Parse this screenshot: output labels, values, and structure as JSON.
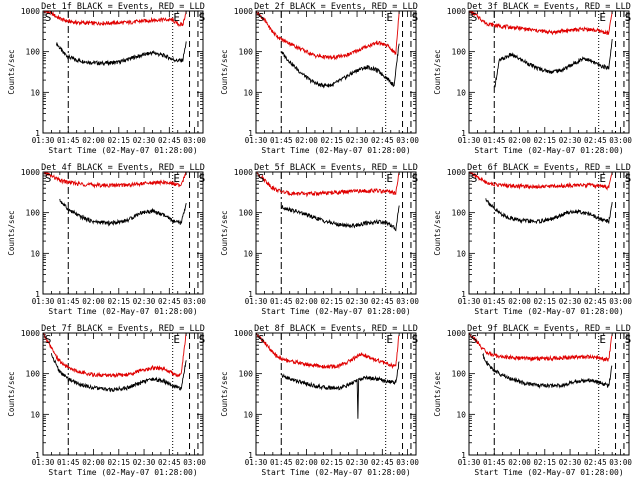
{
  "figure": {
    "x_label": "Start Time (02-May-07 01:28:00)",
    "y_label": "Counts/sec",
    "x_ticks": [
      "01:30",
      "01:45",
      "02:00",
      "02:15",
      "02:30",
      "02:45",
      "03:00"
    ],
    "y_ticks": [
      "1",
      "10",
      "100",
      "1000"
    ],
    "markers": [
      "S",
      "E",
      "S"
    ],
    "colors": {
      "events": "#000000",
      "lld": "#e00000",
      "axes": "#000000"
    }
  },
  "chart_data": [
    {
      "type": "line",
      "title": "Det 1f BLACK = Events, RED = LLD",
      "x_unit": "minutes after 01:30",
      "y_scale": "log",
      "xlim": [
        0,
        95
      ],
      "ylim": [
        1,
        1000
      ],
      "guide_lines": {
        "dashdot": 15,
        "dotted": 77,
        "dashed": [
          87,
          92
        ]
      },
      "series": [
        {
          "name": "Events",
          "color": "#000000",
          "x": [
            8,
            12,
            15,
            20,
            28,
            35,
            45,
            55,
            65,
            72,
            77,
            80,
            83,
            85
          ],
          "y": [
            160,
            95,
            75,
            62,
            55,
            52,
            55,
            75,
            95,
            80,
            65,
            60,
            62,
            170
          ]
        },
        {
          "name": "LLD",
          "color": "#e00000",
          "x": [
            0,
            5,
            8,
            12,
            15,
            20,
            30,
            40,
            50,
            60,
            70,
            77,
            80,
            83,
            85
          ],
          "y": [
            1000,
            880,
            720,
            600,
            560,
            520,
            500,
            510,
            520,
            570,
            620,
            600,
            480,
            450,
            1000
          ]
        }
      ]
    },
    {
      "type": "line",
      "title": "Det 2f BLACK = Events, RED = LLD",
      "x_unit": "minutes after 01:30",
      "y_scale": "log",
      "xlim": [
        0,
        95
      ],
      "ylim": [
        1,
        1000
      ],
      "guide_lines": {
        "dashdot": 15,
        "dotted": 77,
        "dashed": [
          87,
          92
        ]
      },
      "series": [
        {
          "name": "Events",
          "color": "#000000",
          "x": [
            15,
            18,
            25,
            32,
            38,
            45,
            52,
            60,
            66,
            72,
            78,
            82,
            85
          ],
          "y": [
            100,
            70,
            35,
            20,
            15,
            15,
            22,
            35,
            42,
            35,
            22,
            15,
            170
          ]
        },
        {
          "name": "LLD",
          "color": "#e00000",
          "x": [
            0,
            5,
            10,
            15,
            20,
            28,
            35,
            45,
            55,
            65,
            72,
            78,
            83,
            85
          ],
          "y": [
            1000,
            600,
            300,
            200,
            160,
            110,
            80,
            70,
            85,
            130,
            170,
            140,
            90,
            1000
          ]
        }
      ]
    },
    {
      "type": "line",
      "title": "Det 3f BLACK = Events, RED = LLD",
      "x_unit": "minutes after 01:30",
      "y_scale": "log",
      "xlim": [
        0,
        95
      ],
      "ylim": [
        1,
        1000
      ],
      "guide_lines": {
        "dashdot": 15,
        "dotted": 77,
        "dashed": [
          87,
          92
        ]
      },
      "series": [
        {
          "name": "Events",
          "color": "#000000",
          "x": [
            15,
            18,
            25,
            32,
            40,
            48,
            55,
            62,
            68,
            72,
            78,
            83,
            85
          ],
          "y": [
            12,
            60,
            85,
            60,
            40,
            32,
            35,
            50,
            70,
            60,
            45,
            40,
            200
          ]
        },
        {
          "name": "LLD",
          "color": "#e00000",
          "x": [
            0,
            5,
            10,
            15,
            20,
            30,
            40,
            50,
            60,
            70,
            78,
            83,
            85
          ],
          "y": [
            1000,
            750,
            500,
            450,
            420,
            380,
            330,
            300,
            340,
            360,
            320,
            280,
            1000
          ]
        }
      ]
    },
    {
      "type": "line",
      "title": "Det 4f BLACK = Events, RED = LLD",
      "x_unit": "minutes after 01:30",
      "y_scale": "log",
      "xlim": [
        0,
        95
      ],
      "ylim": [
        1,
        1000
      ],
      "guide_lines": {
        "dashdot": 15,
        "dotted": 77,
        "dashed": [
          87,
          92
        ]
      },
      "series": [
        {
          "name": "Events",
          "color": "#000000",
          "x": [
            10,
            15,
            22,
            30,
            40,
            50,
            58,
            65,
            72,
            78,
            82,
            85
          ],
          "y": [
            200,
            120,
            80,
            60,
            55,
            65,
            100,
            110,
            85,
            60,
            55,
            170
          ]
        },
        {
          "name": "LLD",
          "color": "#e00000",
          "x": [
            0,
            5,
            10,
            15,
            20,
            30,
            40,
            50,
            60,
            70,
            78,
            82,
            85
          ],
          "y": [
            1000,
            800,
            620,
            560,
            520,
            480,
            470,
            480,
            520,
            560,
            520,
            450,
            1000
          ]
        }
      ]
    },
    {
      "type": "line",
      "title": "Det 5f BLACK = Events, RED = LLD",
      "x_unit": "minutes after 01:30",
      "y_scale": "log",
      "xlim": [
        0,
        95
      ],
      "ylim": [
        1,
        1000
      ],
      "guide_lines": {
        "dashdot": 15,
        "dotted": 77,
        "dashed": [
          87,
          92
        ]
      },
      "series": [
        {
          "name": "Events",
          "color": "#000000",
          "x": [
            15,
            20,
            28,
            35,
            42,
            50,
            58,
            65,
            72,
            78,
            83,
            85
          ],
          "y": [
            140,
            120,
            95,
            75,
            60,
            50,
            48,
            55,
            60,
            55,
            40,
            150
          ]
        },
        {
          "name": "LLD",
          "color": "#e00000",
          "x": [
            0,
            5,
            10,
            15,
            20,
            30,
            40,
            50,
            60,
            70,
            78,
            83,
            85
          ],
          "y": [
            1000,
            650,
            400,
            330,
            300,
            290,
            300,
            320,
            340,
            350,
            330,
            300,
            1000
          ]
        }
      ]
    },
    {
      "type": "line",
      "title": "Det 6f BLACK = Events, RED = LLD",
      "x_unit": "minutes after 01:30",
      "y_scale": "log",
      "xlim": [
        0,
        95
      ],
      "ylim": [
        1,
        1000
      ],
      "guide_lines": {
        "dashdot": 15,
        "dotted": 77,
        "dashed": [
          87,
          92
        ]
      },
      "series": [
        {
          "name": "Events",
          "color": "#000000",
          "x": [
            10,
            15,
            22,
            30,
            40,
            50,
            58,
            65,
            72,
            78,
            83,
            85
          ],
          "y": [
            220,
            120,
            80,
            65,
            60,
            70,
            100,
            110,
            90,
            70,
            60,
            180
          ]
        },
        {
          "name": "LLD",
          "color": "#e00000",
          "x": [
            0,
            5,
            10,
            15,
            20,
            30,
            40,
            50,
            60,
            70,
            78,
            83,
            85
          ],
          "y": [
            1000,
            750,
            560,
            500,
            470,
            450,
            440,
            450,
            470,
            480,
            450,
            420,
            1000
          ]
        }
      ]
    },
    {
      "type": "line",
      "title": "Det 7f BLACK = Events, RED = LLD",
      "x_unit": "minutes after 01:30",
      "y_scale": "log",
      "xlim": [
        0,
        95
      ],
      "ylim": [
        1,
        1000
      ],
      "guide_lines": {
        "dashdot": 15,
        "dotted": 77,
        "dashed": [
          87,
          92
        ]
      },
      "series": [
        {
          "name": "Events",
          "color": "#000000",
          "x": [
            5,
            10,
            15,
            22,
            30,
            40,
            50,
            58,
            65,
            72,
            78,
            82,
            85
          ],
          "y": [
            300,
            110,
            75,
            55,
            45,
            40,
            45,
            60,
            75,
            65,
            48,
            42,
            220
          ]
        },
        {
          "name": "LLD",
          "color": "#e00000",
          "x": [
            0,
            4,
            8,
            12,
            15,
            22,
            30,
            40,
            50,
            58,
            65,
            72,
            78,
            82,
            85
          ],
          "y": [
            1000,
            500,
            250,
            170,
            140,
            110,
            95,
            90,
            95,
            120,
            140,
            130,
            100,
            90,
            1000
          ]
        }
      ]
    },
    {
      "type": "line",
      "title": "Det 8f BLACK = Events, RED = LLD",
      "x_unit": "minutes after 01:30",
      "y_scale": "log",
      "xlim": [
        0,
        95
      ],
      "ylim": [
        1,
        1000
      ],
      "guide_lines": {
        "dashdot": 15,
        "dotted": 77,
        "dashed": [
          87,
          92
        ]
      },
      "series": [
        {
          "name": "Events",
          "color": "#000000",
          "x": [
            15,
            20,
            28,
            35,
            42,
            50,
            56,
            60,
            60.5,
            61,
            65,
            72,
            78,
            83,
            85
          ],
          "y": [
            90,
            75,
            60,
            50,
            45,
            45,
            55,
            70,
            8,
            70,
            80,
            75,
            65,
            60,
            200
          ]
        },
        {
          "name": "LLD",
          "color": "#e00000",
          "x": [
            0,
            5,
            10,
            15,
            22,
            30,
            40,
            48,
            55,
            62,
            68,
            74,
            78,
            83,
            85
          ],
          "y": [
            1000,
            600,
            320,
            230,
            200,
            170,
            150,
            150,
            200,
            300,
            250,
            200,
            170,
            150,
            1000
          ]
        }
      ]
    },
    {
      "type": "line",
      "title": "Det 9f BLACK = Events, RED = LLD",
      "x_unit": "minutes after 01:30",
      "y_scale": "log",
      "xlim": [
        0,
        95
      ],
      "ylim": [
        1,
        1000
      ],
      "guide_lines": {
        "dashdot": 15,
        "dotted": 77,
        "dashed": [
          87,
          92
        ]
      },
      "series": [
        {
          "name": "Events",
          "color": "#000000",
          "x": [
            8,
            12,
            18,
            25,
            32,
            40,
            50,
            58,
            65,
            72,
            78,
            83,
            85
          ],
          "y": [
            300,
            150,
            100,
            75,
            60,
            52,
            50,
            55,
            65,
            70,
            60,
            50,
            170
          ]
        },
        {
          "name": "LLD",
          "color": "#e00000",
          "x": [
            0,
            5,
            10,
            15,
            20,
            30,
            40,
            50,
            60,
            70,
            78,
            83,
            85
          ],
          "y": [
            1000,
            600,
            340,
            280,
            260,
            240,
            235,
            240,
            250,
            260,
            240,
            220,
            1000
          ]
        }
      ]
    }
  ]
}
